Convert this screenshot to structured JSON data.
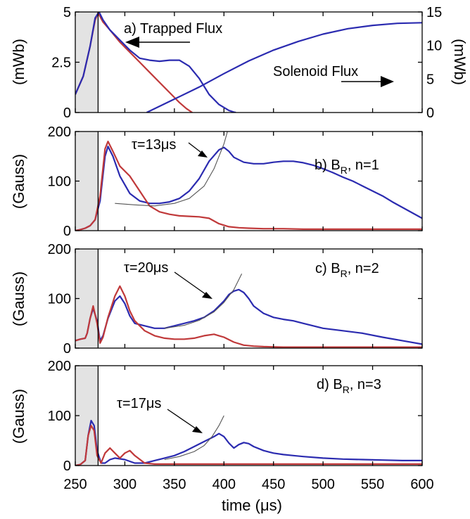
{
  "colors": {
    "blue": "#2b2bb0",
    "red": "#c0393a",
    "fit": "#555555",
    "shade": "#e3e3e3"
  },
  "x_axis": {
    "label": "time (μs)",
    "range": [
      250,
      600
    ],
    "ticks": [
      250,
      300,
      350,
      400,
      450,
      500,
      550,
      600
    ],
    "tick_labels": [
      "250",
      "300",
      "350",
      "400",
      "450",
      "500",
      "550",
      "600"
    ],
    "shaded_region": [
      250,
      273
    ]
  },
  "chart_data": [
    {
      "type": "line",
      "panel": "a",
      "annotation": "a) Trapped Flux",
      "annotation2": "Solenoid Flux",
      "ylabel": "(mWb)",
      "ylabel_right": "(mWb)",
      "ylim": [
        0,
        5
      ],
      "yticks": [
        "0",
        "2.5",
        "5"
      ],
      "ylim_right": [
        0,
        15
      ],
      "yticks_right": [
        "0",
        "5",
        "10",
        "15"
      ],
      "series": [
        {
          "color": "red",
          "axis": "left",
          "x": [
            250,
            258,
            265,
            270,
            273,
            278,
            285,
            295,
            305,
            315,
            325,
            335,
            345,
            355,
            362,
            368
          ],
          "y": [
            0.9,
            1.8,
            3.3,
            4.6,
            4.95,
            4.5,
            4.1,
            3.5,
            3.0,
            2.5,
            2.0,
            1.5,
            1.0,
            0.5,
            0.2,
            0.0
          ]
        },
        {
          "color": "blue",
          "axis": "left",
          "x": [
            250,
            258,
            265,
            270,
            274,
            278,
            285,
            295,
            305,
            315,
            325,
            335,
            345,
            355,
            365,
            375,
            385,
            395,
            405,
            410,
            412
          ],
          "y": [
            0.9,
            1.8,
            3.3,
            4.7,
            5.0,
            4.6,
            4.1,
            3.6,
            3.1,
            2.7,
            2.6,
            2.55,
            2.6,
            2.6,
            2.3,
            1.7,
            0.9,
            0.4,
            0.1,
            0.02,
            0.0
          ]
        },
        {
          "color": "blue",
          "axis": "right",
          "x": [
            322,
            350,
            375,
            400,
            425,
            450,
            475,
            500,
            525,
            550,
            575,
            600
          ],
          "y": [
            0.0,
            2.0,
            3.8,
            5.8,
            7.7,
            9.3,
            10.6,
            11.7,
            12.5,
            13.0,
            13.3,
            13.4
          ]
        }
      ]
    },
    {
      "type": "line",
      "panel": "b",
      "annotation": "b) B",
      "annotation_sub": "R",
      "annotation_tail": ", n=1",
      "tau": "τ=13μs",
      "ylabel": "(Gauss)",
      "ylim": [
        0,
        200
      ],
      "yticks": [
        "0",
        "100",
        "200"
      ],
      "series": [
        {
          "color": "blue",
          "x": [
            250,
            255,
            260,
            265,
            270,
            275,
            280,
            283,
            288,
            295,
            305,
            315,
            325,
            335,
            345,
            355,
            365,
            375,
            385,
            395,
            400,
            405,
            410,
            420,
            430,
            440,
            450,
            460,
            470,
            480,
            490,
            500,
            510,
            520,
            530,
            540,
            550,
            560,
            570,
            580,
            590,
            600
          ],
          "y": [
            0,
            2,
            5,
            10,
            22,
            60,
            150,
            170,
            150,
            110,
            75,
            60,
            55,
            55,
            58,
            65,
            80,
            105,
            140,
            163,
            168,
            160,
            148,
            138,
            135,
            135,
            138,
            140,
            140,
            137,
            132,
            125,
            117,
            108,
            100,
            90,
            80,
            70,
            58,
            47,
            36,
            25
          ]
        },
        {
          "color": "red",
          "x": [
            250,
            255,
            260,
            265,
            270,
            275,
            280,
            283,
            288,
            295,
            305,
            315,
            325,
            335,
            345,
            355,
            365,
            375,
            385,
            395,
            405,
            415,
            425,
            440,
            460,
            480,
            500,
            550,
            600
          ],
          "y": [
            0,
            2,
            5,
            10,
            22,
            70,
            165,
            180,
            160,
            130,
            110,
            80,
            50,
            38,
            33,
            30,
            29,
            28,
            25,
            14,
            8,
            6,
            5,
            4,
            4,
            3,
            3,
            3,
            3
          ]
        },
        {
          "color": "fit",
          "x": [
            290,
            310,
            330,
            350,
            365,
            380,
            390,
            400,
            405
          ],
          "y": [
            55,
            52,
            50,
            55,
            65,
            90,
            125,
            175,
            210
          ]
        }
      ]
    },
    {
      "type": "line",
      "panel": "c",
      "annotation": "c) B",
      "annotation_sub": "R",
      "annotation_tail": ", n=2",
      "tau": "τ=20μs",
      "ylabel": "(Gauss)",
      "ylim": [
        0,
        200
      ],
      "yticks": [
        "0",
        "100",
        "200"
      ],
      "series": [
        {
          "color": "blue",
          "x": [
            250,
            255,
            260,
            262,
            265,
            268,
            272,
            275,
            278,
            283,
            290,
            295,
            300,
            305,
            310,
            320,
            330,
            340,
            350,
            360,
            370,
            380,
            390,
            400,
            405,
            410,
            415,
            420,
            425,
            430,
            440,
            450,
            460,
            470,
            480,
            490,
            500,
            520,
            540,
            560,
            580,
            600
          ],
          "y": [
            15,
            18,
            20,
            30,
            60,
            80,
            55,
            15,
            25,
            60,
            95,
            105,
            90,
            65,
            50,
            45,
            40,
            40,
            45,
            50,
            55,
            62,
            75,
            95,
            108,
            115,
            118,
            112,
            100,
            85,
            70,
            62,
            58,
            55,
            50,
            45,
            40,
            35,
            30,
            22,
            15,
            8
          ]
        },
        {
          "color": "red",
          "x": [
            250,
            255,
            260,
            262,
            265,
            268,
            272,
            275,
            278,
            283,
            290,
            295,
            300,
            305,
            310,
            320,
            330,
            340,
            350,
            360,
            370,
            380,
            390,
            395,
            400,
            410,
            420,
            430,
            440,
            460,
            480,
            500,
            520,
            550,
            600
          ],
          "y": [
            15,
            18,
            20,
            30,
            60,
            85,
            50,
            10,
            22,
            62,
            105,
            125,
            105,
            75,
            55,
            35,
            25,
            20,
            18,
            18,
            20,
            25,
            28,
            25,
            22,
            12,
            6,
            4,
            3,
            2,
            2,
            2,
            2,
            2,
            2
          ]
        },
        {
          "color": "fit",
          "x": [
            340,
            360,
            375,
            390,
            400,
            410,
            418
          ],
          "y": [
            40,
            46,
            56,
            73,
            92,
            118,
            150
          ]
        }
      ]
    },
    {
      "type": "line",
      "panel": "d",
      "annotation": "d) B",
      "annotation_sub": "R",
      "annotation_tail": ", n=3",
      "tau": "τ=17μs",
      "ylabel": "(Gauss)",
      "ylim": [
        0,
        200
      ],
      "yticks": [
        "0",
        "100",
        "200"
      ],
      "series": [
        {
          "color": "blue",
          "x": [
            250,
            255,
            260,
            263,
            266,
            269,
            272,
            276,
            280,
            285,
            290,
            300,
            310,
            320,
            330,
            340,
            350,
            360,
            370,
            380,
            390,
            395,
            400,
            405,
            410,
            415,
            420,
            425,
            430,
            440,
            450,
            460,
            470,
            480,
            500,
            520,
            540,
            560,
            580,
            600
          ],
          "y": [
            0,
            2,
            10,
            60,
            90,
            80,
            30,
            5,
            5,
            12,
            15,
            12,
            5,
            5,
            10,
            15,
            20,
            28,
            38,
            48,
            58,
            64,
            58,
            45,
            35,
            42,
            46,
            44,
            38,
            30,
            25,
            22,
            20,
            18,
            15,
            13,
            12,
            11,
            10,
            10
          ]
        },
        {
          "color": "red",
          "x": [
            250,
            255,
            260,
            263,
            266,
            269,
            272,
            276,
            280,
            285,
            290,
            295,
            300,
            305,
            310,
            320,
            330,
            340,
            360,
            380,
            400,
            450,
            500,
            550,
            600
          ],
          "y": [
            0,
            2,
            10,
            60,
            80,
            70,
            20,
            5,
            25,
            35,
            25,
            15,
            25,
            30,
            20,
            5,
            3,
            3,
            3,
            3,
            3,
            3,
            3,
            3,
            3
          ]
        },
        {
          "color": "fit",
          "x": [
            340,
            355,
            370,
            380,
            388,
            395,
            400
          ],
          "y": [
            12,
            18,
            28,
            40,
            58,
            80,
            100
          ]
        }
      ]
    }
  ]
}
